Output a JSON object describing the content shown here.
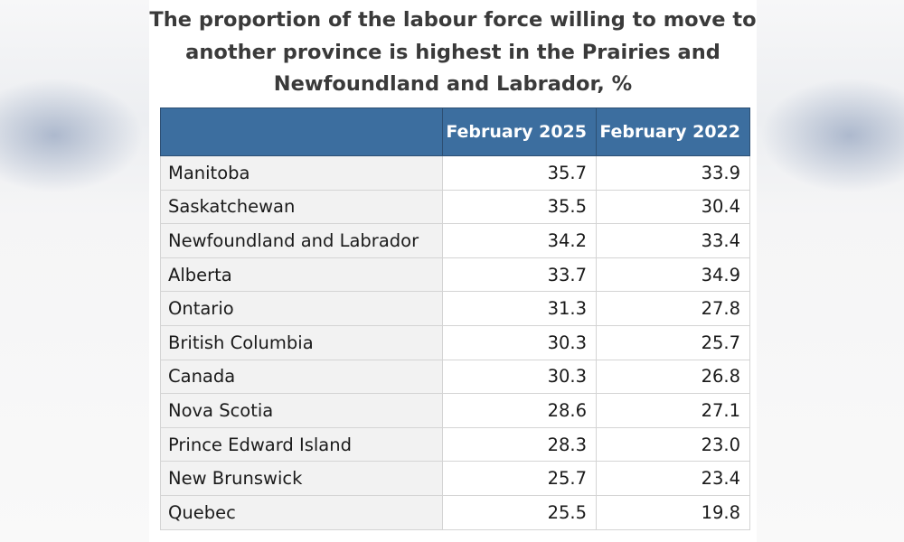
{
  "chart_data": {
    "type": "table",
    "title_lines": [
      "The proportion of the labour force willing to move to",
      "another province is highest in the Prairies and",
      "Newfoundland and Labrador, %"
    ],
    "columns": [
      "",
      "February 2025",
      "February 2022"
    ],
    "rows": [
      {
        "region": "Manitoba",
        "feb_2025": "35.7",
        "feb_2022": "33.9"
      },
      {
        "region": "Saskatchewan",
        "feb_2025": "35.5",
        "feb_2022": "30.4"
      },
      {
        "region": "Newfoundland and Labrador",
        "feb_2025": "34.2",
        "feb_2022": "33.4"
      },
      {
        "region": "Alberta",
        "feb_2025": "33.7",
        "feb_2022": "34.9"
      },
      {
        "region": "Ontario",
        "feb_2025": "31.3",
        "feb_2022": "27.8"
      },
      {
        "region": "British Columbia",
        "feb_2025": "30.3",
        "feb_2022": "25.7"
      },
      {
        "region": "Canada",
        "feb_2025": "30.3",
        "feb_2022": "26.8"
      },
      {
        "region": "Nova Scotia",
        "feb_2025": "28.6",
        "feb_2022": "27.1"
      },
      {
        "region": "Prince Edward Island",
        "feb_2025": "28.3",
        "feb_2022": "23.0"
      },
      {
        "region": "New Brunswick",
        "feb_2025": "25.7",
        "feb_2022": "23.4"
      },
      {
        "region": "Quebec",
        "feb_2025": "25.5",
        "feb_2022": "19.8"
      }
    ]
  },
  "colors": {
    "header_bg": "#3c6e9f",
    "header_text": "#ffffff",
    "label_cell_bg": "#f2f2f2",
    "title_text": "#3a3a3a"
  }
}
